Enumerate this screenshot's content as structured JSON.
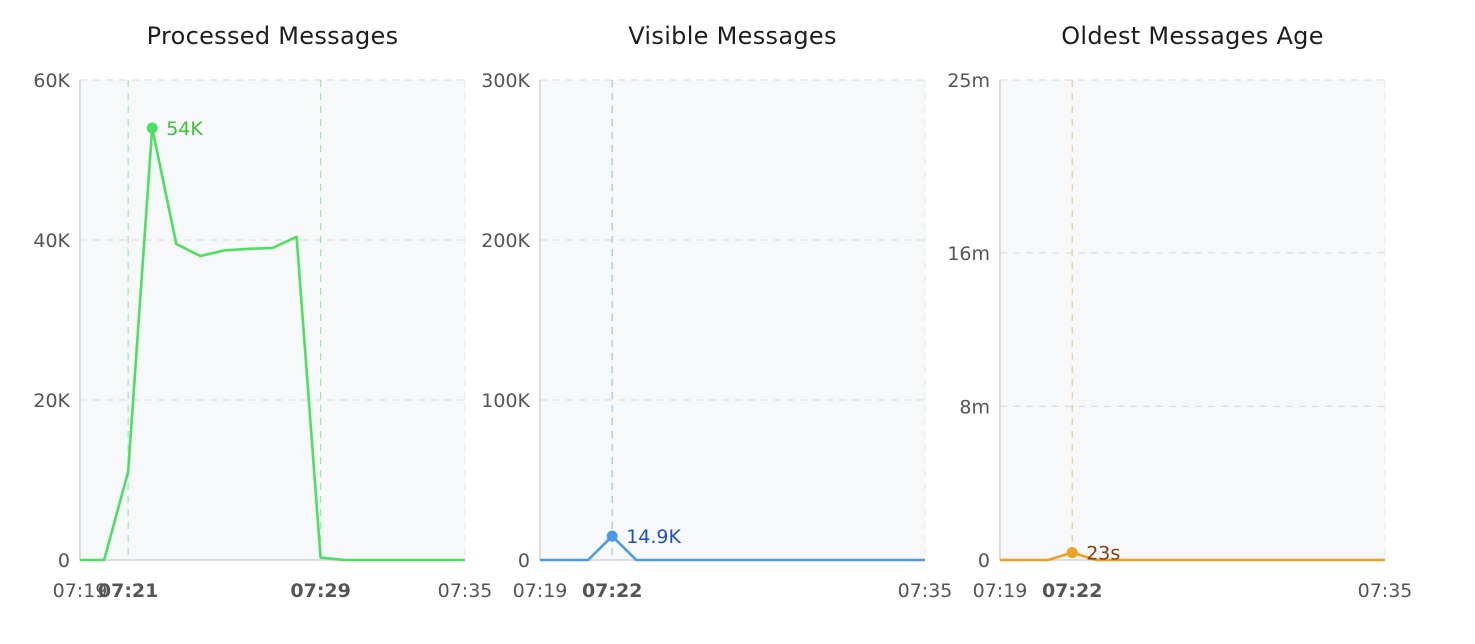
{
  "chart_data": [
    {
      "type": "line",
      "title": "Processed Messages",
      "color": "#4ce060",
      "accent": "#3fc233",
      "x": [
        "07:19",
        "07:20",
        "07:21",
        "07:22",
        "07:23",
        "07:24",
        "07:25",
        "07:26",
        "07:27",
        "07:28",
        "07:29",
        "07:30",
        "07:35"
      ],
      "values": [
        0,
        0,
        11000,
        54000,
        39500,
        38000,
        38700,
        38900,
        39000,
        40400,
        300,
        0,
        0
      ],
      "ylim": [
        0,
        60000
      ],
      "yticks": [
        {
          "v": 0,
          "label": "0"
        },
        {
          "v": 20000,
          "label": "20K"
        },
        {
          "v": 40000,
          "label": "40K"
        },
        {
          "v": 60000,
          "label": "60K"
        }
      ],
      "xlim": [
        "07:19",
        "07:35"
      ],
      "xticks": [
        {
          "t": "07:19",
          "label": "07:19",
          "hl": false
        },
        {
          "t": "07:21",
          "label": "07:21",
          "hl": true
        },
        {
          "t": "07:29",
          "label": "07:29",
          "hl": true
        },
        {
          "t": "07:35",
          "label": "07:35",
          "hl": false
        }
      ],
      "vlines": [
        "07:21",
        "07:29"
      ],
      "annotation": {
        "x": "07:22",
        "y": 54000,
        "label": "54K"
      }
    },
    {
      "type": "line",
      "title": "Visible Messages",
      "color": "#4a9ae8",
      "accent": "#1f4fc4",
      "x": [
        "07:19",
        "07:20",
        "07:21",
        "07:22",
        "07:23",
        "07:35"
      ],
      "values": [
        0,
        0,
        0,
        14900,
        0,
        0
      ],
      "ylim": [
        0,
        300000
      ],
      "yticks": [
        {
          "v": 0,
          "label": "0"
        },
        {
          "v": 100000,
          "label": "100K"
        },
        {
          "v": 200000,
          "label": "200K"
        },
        {
          "v": 300000,
          "label": "300K"
        }
      ],
      "xlim": [
        "07:19",
        "07:35"
      ],
      "xticks": [
        {
          "t": "07:19",
          "label": "07:19",
          "hl": false
        },
        {
          "t": "07:22",
          "label": "07:22",
          "hl": true
        },
        {
          "t": "07:35",
          "label": "07:35",
          "hl": false
        }
      ],
      "vlines": [
        "07:22"
      ],
      "annotation": {
        "x": "07:22",
        "y": 14900,
        "label": "14.9K"
      }
    },
    {
      "type": "line",
      "title": "Oldest Messages Age",
      "color": "#f0a020",
      "accent": "#8a3b0a",
      "x": [
        "07:19",
        "07:20",
        "07:21",
        "07:22",
        "07:23",
        "07:35"
      ],
      "values": [
        0,
        0,
        0,
        23,
        0,
        0
      ],
      "ylim": [
        0,
        1500
      ],
      "yticks": [
        {
          "v": 0,
          "label": "0"
        },
        {
          "v": 480,
          "label": "8m"
        },
        {
          "v": 960,
          "label": "16m"
        },
        {
          "v": 1500,
          "label": "25m"
        }
      ],
      "xlim": [
        "07:19",
        "07:35"
      ],
      "xticks": [
        {
          "t": "07:19",
          "label": "07:19",
          "hl": false
        },
        {
          "t": "07:22",
          "label": "07:22",
          "hl": true
        },
        {
          "t": "07:35",
          "label": "07:35",
          "hl": false
        }
      ],
      "vlines": [
        "07:22"
      ],
      "annotation": {
        "x": "07:22",
        "y": 23,
        "label": "23s"
      }
    }
  ]
}
